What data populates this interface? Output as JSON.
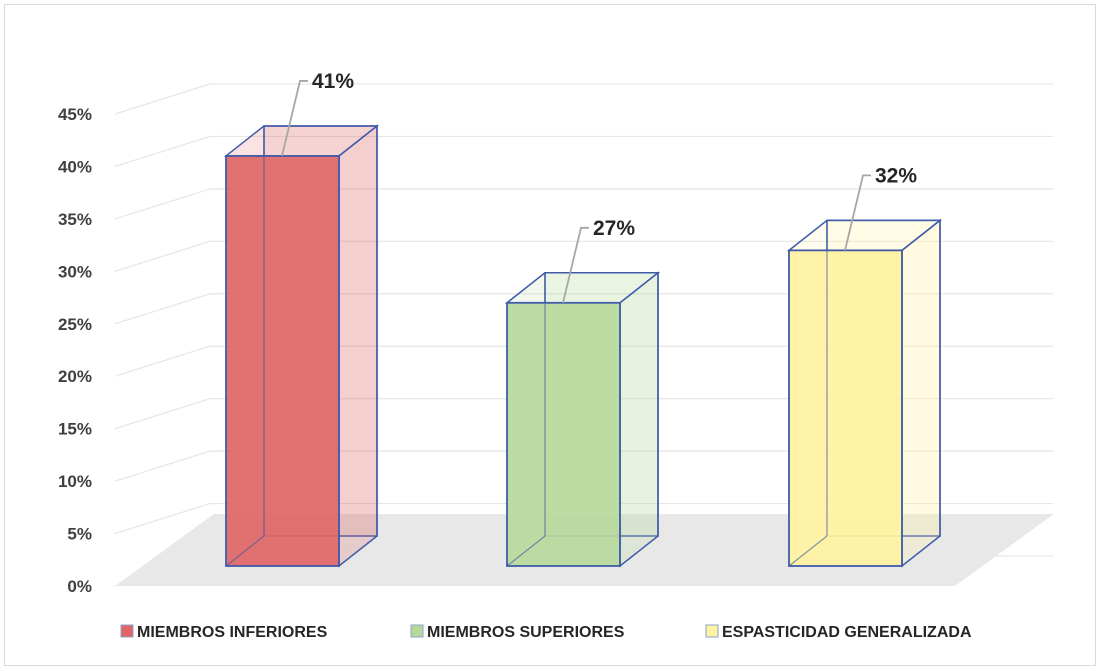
{
  "chart_data": {
    "type": "bar",
    "style": "3d-column",
    "categories": [
      "MIEMBROS INFERIORES",
      "MIEMBROS SUPERIORES",
      "ESPASTICIDAD GENERALIZADA"
    ],
    "values": [
      41,
      27,
      32
    ],
    "value_unit": "%",
    "data_labels": [
      "41%",
      "27%",
      "32%"
    ],
    "colors": [
      "#e06666",
      "#b6d99b",
      "#fff2a0"
    ],
    "edge_color": "#3f5ba9",
    "floor_color": "#e8e8e8",
    "gridline_color": "#e6e6e6",
    "ylim": [
      0,
      45
    ],
    "yticks": [
      0,
      5,
      10,
      15,
      20,
      25,
      30,
      35,
      40,
      45
    ],
    "ytick_labels": [
      "0%",
      "5%",
      "10%",
      "15%",
      "20%",
      "25%",
      "30%",
      "35%",
      "40%",
      "45%"
    ],
    "grid": true,
    "legend_position": "bottom",
    "title": "",
    "xlabel": "",
    "ylabel": ""
  }
}
